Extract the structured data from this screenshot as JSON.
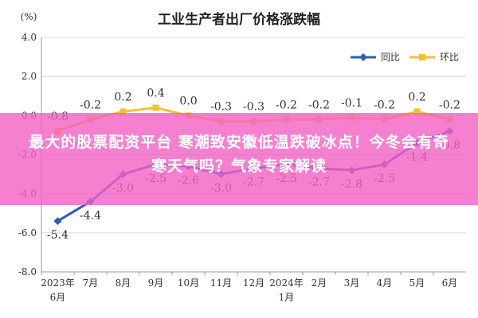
{
  "overlay": {
    "headline": "最大的股票配资平台 寒潮致安徽低温跌破冰点！今冬会有奇寒天气吗？气象专家解读"
  },
  "chart_data": {
    "type": "line",
    "title": "工业生产者出厂价格涨跌幅",
    "ylabel": "(%)",
    "ylim": [
      -8.0,
      4.0
    ],
    "yticks": [
      "4.0",
      "2.0",
      "0.0",
      "-2.0",
      "-4.0",
      "-6.0",
      "-8.0"
    ],
    "ytick_values": [
      4,
      2,
      0,
      -2,
      -4,
      -6,
      -8
    ],
    "categories": [
      "2023年6月",
      "7月",
      "8月",
      "9月",
      "10月",
      "11月",
      "12月",
      "2024年1月",
      "2月",
      "3月",
      "4月",
      "5月",
      "6月"
    ],
    "x_label_lines": [
      [
        "2023年",
        "6月"
      ],
      [
        "7月"
      ],
      [
        "8月"
      ],
      [
        "9月"
      ],
      [
        "10月"
      ],
      [
        "11月"
      ],
      [
        "12月"
      ],
      [
        "2024年",
        "1月"
      ],
      [
        "2月"
      ],
      [
        "3月"
      ],
      [
        "4月"
      ],
      [
        "5月"
      ],
      [
        "6月"
      ]
    ],
    "legend_position": "top-right",
    "series": [
      {
        "name": "同比",
        "color": "#2e5cb8",
        "marker": "diamond",
        "values": [
          -5.4,
          -4.4,
          -3.0,
          -2.5,
          -2.6,
          -3.0,
          -2.7,
          -2.5,
          -2.7,
          -2.8,
          -2.5,
          -1.4,
          -0.8
        ],
        "labels": [
          "-5.4",
          "-4.4",
          "-3.0",
          "-2.5",
          "-2.6",
          "-3.0",
          "-2.7",
          "-2.5",
          "-2.7",
          "-2.8",
          "-2.5",
          "-1.4",
          "-0.8"
        ]
      },
      {
        "name": "环比",
        "color": "#f2c230",
        "marker": "square",
        "values": [
          -0.8,
          -0.2,
          0.2,
          0.4,
          0.0,
          -0.3,
          -0.3,
          -0.2,
          -0.2,
          -0.1,
          -0.2,
          0.2,
          -0.2
        ],
        "labels": [
          "-0.8",
          "-0.2",
          "0.2",
          "0.4",
          "0.0",
          "-0.3",
          "-0.3",
          "-0.2",
          "-0.2",
          "-0.1",
          "-0.2",
          "0.2",
          "-0.2"
        ]
      }
    ]
  }
}
